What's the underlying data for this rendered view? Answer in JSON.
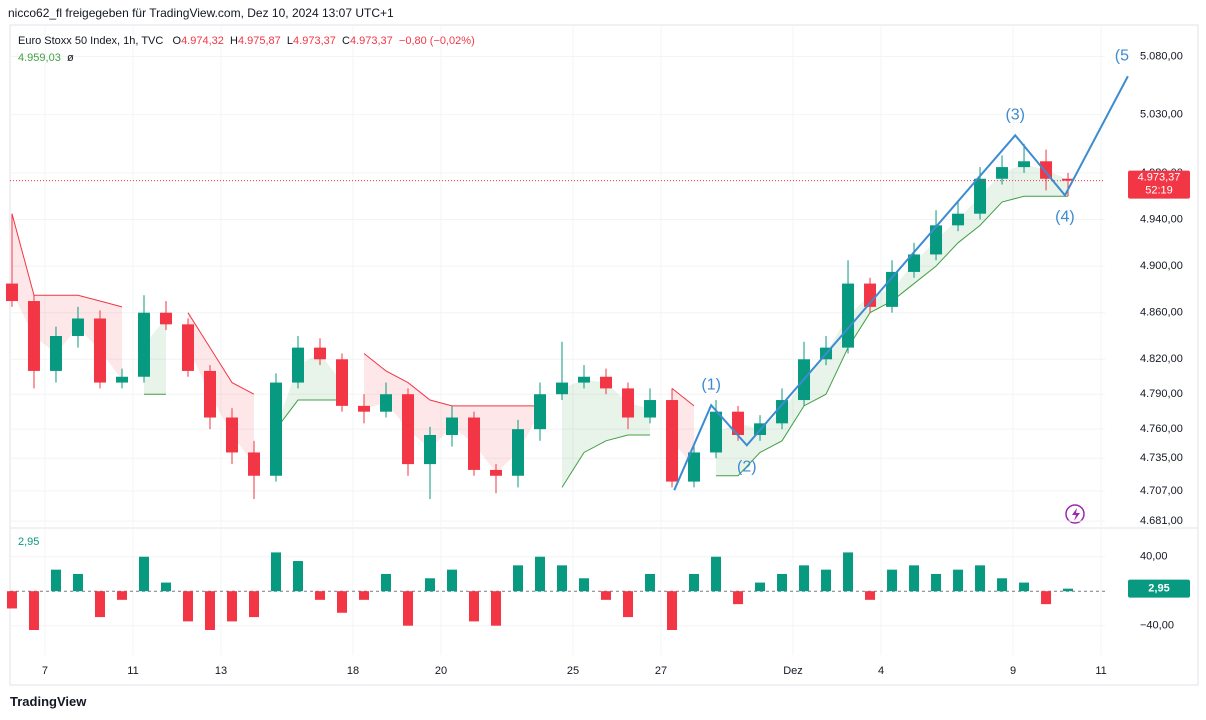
{
  "header": "nicco62_fl freigegeben für TradingView.com, Dez 10, 2024 13:07 UTC+1",
  "legend": {
    "symbol": "Euro Stoxx 50 Index, 1h, TVC",
    "o_label": "O",
    "o": "4.974,32",
    "h_label": "H",
    "h": "4.975,87",
    "l_label": "L",
    "l": "4.973,37",
    "c_label": "C",
    "c": "4.973,37",
    "change": "−0,80 (−0,02%)",
    "indicator": "4.959,03",
    "indicator_sign": "ø"
  },
  "price_tag": {
    "price": "4.973,37",
    "countdown": "52:19"
  },
  "footer": "TradingView",
  "chart_data": [
    {
      "type": "candlestick",
      "up_color": "#089981",
      "down_color": "#f23645",
      "x": [
        -0.75,
        -0.25,
        0.25,
        0.75,
        1.25,
        1.75,
        2.25,
        2.75,
        3.25,
        3.75,
        4.25,
        4.75,
        5.25,
        5.75,
        6.25,
        6.75,
        7.25,
        7.75,
        8.25,
        8.75,
        9.25,
        9.75,
        10.25,
        10.75,
        11.25,
        11.75,
        12.25,
        12.75,
        13.25,
        13.75,
        14.25,
        14.75,
        15.25,
        15.75,
        16.25,
        16.75,
        17.25,
        17.75,
        18.25,
        18.75,
        19.25,
        19.75,
        20.25,
        20.75,
        21.25,
        21.75,
        22.25,
        22.75,
        23.25
      ],
      "open": [
        4885,
        4870,
        4810,
        4840,
        4855,
        4800,
        4805,
        4860,
        4850,
        4810,
        4770,
        4740,
        4720,
        4800,
        4830,
        4820,
        4780,
        4775,
        4790,
        4730,
        4755,
        4770,
        4725,
        4720,
        4760,
        4790,
        4800,
        4805,
        4795,
        4770,
        4785,
        4715,
        4740,
        4775,
        4755,
        4765,
        4785,
        4820,
        4830,
        4885,
        4865,
        4895,
        4910,
        4935,
        4945,
        4975,
        4985,
        4990,
        4975
      ],
      "high": [
        4945,
        4875,
        4848,
        4865,
        4862,
        4812,
        4875,
        4870,
        4855,
        4815,
        4778,
        4750,
        4808,
        4840,
        4838,
        4825,
        4790,
        4800,
        4795,
        4762,
        4780,
        4775,
        4730,
        4768,
        4800,
        4835,
        4815,
        4812,
        4800,
        4795,
        4795,
        4745,
        4785,
        4780,
        4772,
        4795,
        4835,
        4840,
        4905,
        4890,
        4905,
        4920,
        4948,
        4955,
        4985,
        4995,
        5005,
        5000,
        4980
      ],
      "low": [
        4865,
        4795,
        4800,
        4830,
        4795,
        4795,
        4800,
        4845,
        4805,
        4760,
        4730,
        4700,
        4715,
        4795,
        4815,
        4775,
        4765,
        4770,
        4720,
        4700,
        4745,
        4720,
        4705,
        4710,
        4750,
        4785,
        4795,
        4790,
        4760,
        4765,
        4710,
        4710,
        4735,
        4750,
        4750,
        4760,
        4780,
        4815,
        4825,
        4860,
        4860,
        4890,
        4905,
        4930,
        4940,
        4970,
        4980,
        4965,
        4960
      ],
      "close": [
        4870,
        4810,
        4840,
        4855,
        4800,
        4805,
        4860,
        4850,
        4810,
        4770,
        4740,
        4720,
        4800,
        4830,
        4820,
        4780,
        4775,
        4790,
        4730,
        4755,
        4770,
        4725,
        4720,
        4760,
        4790,
        4800,
        4805,
        4795,
        4770,
        4785,
        4715,
        4740,
        4775,
        4755,
        4765,
        4785,
        4820,
        4830,
        4885,
        4865,
        4895,
        4910,
        4935,
        4945,
        4975,
        4985,
        4990,
        4975,
        4973.37
      ],
      "supertrend_up": [
        null,
        null,
        null,
        null,
        null,
        null,
        4790,
        4790,
        null,
        null,
        null,
        null,
        4760,
        4785,
        4785,
        4785,
        null,
        null,
        null,
        null,
        null,
        null,
        null,
        null,
        null,
        4710,
        4740,
        4750,
        4755,
        4755,
        null,
        null,
        4720,
        4720,
        4740,
        4750,
        4780,
        4790,
        4830,
        4860,
        4870,
        4885,
        4900,
        4920,
        4935,
        4955,
        4960,
        4960,
        4960
      ],
      "supertrend_down": [
        4945,
        4875,
        4875,
        4875,
        4870,
        4865,
        null,
        null,
        4860,
        4830,
        4800,
        4790,
        null,
        null,
        null,
        null,
        4825,
        4810,
        4800,
        4785,
        4780,
        4780,
        4780,
        4780,
        4780,
        null,
        null,
        null,
        null,
        null,
        4795,
        4780,
        null,
        null,
        null,
        null,
        null,
        null,
        null,
        null,
        null,
        null,
        null,
        null,
        null,
        null,
        null,
        null,
        null
      ],
      "waves": {
        "color": "#3d8bd0",
        "labels": [
          null,
          "(1)",
          "(2)",
          "(3)",
          "(4)",
          "(5"
        ],
        "x": [
          14.3,
          15.14,
          15.95,
          22.05,
          23.18,
          24.61
        ],
        "y": [
          4707.6,
          4780.6,
          4746.2,
          5012.3,
          4960.8,
          5063
        ]
      },
      "current_price": 4973.37,
      "xlim": [
        -0.795,
        24.09
      ],
      "ylim": [
        4676,
        5107
      ],
      "xticks": [
        {
          "value": 0,
          "label": "7"
        },
        {
          "value": 2,
          "label": "11"
        },
        {
          "value": 4,
          "label": "13"
        },
        {
          "value": 7,
          "label": "18"
        },
        {
          "value": 9,
          "label": "20"
        },
        {
          "value": 12,
          "label": "25"
        },
        {
          "value": 14,
          "label": "27"
        },
        {
          "value": 17,
          "label": "Dez"
        },
        {
          "value": 19,
          "label": "4"
        },
        {
          "value": 22,
          "label": "9"
        },
        {
          "value": 24,
          "label": "11"
        }
      ],
      "yticks": [
        {
          "value": 4681,
          "label": "4.681,00"
        },
        {
          "value": 4707,
          "label": "4.707,00"
        },
        {
          "value": 4735,
          "label": "4.735,00"
        },
        {
          "value": 4760,
          "label": "4.760,00"
        },
        {
          "value": 4790,
          "label": "4.790,00"
        },
        {
          "value": 4820,
          "label": "4.820,00"
        },
        {
          "value": 4860,
          "label": "4.860,00"
        },
        {
          "value": 4900,
          "label": "4.900,00"
        },
        {
          "value": 4940,
          "label": "4.940,00"
        },
        {
          "value": 4980,
          "label": "4.980,00"
        },
        {
          "value": 5030,
          "label": "5.030,00"
        },
        {
          "value": 5080,
          "label": "5.080,00"
        }
      ]
    },
    {
      "type": "histogram",
      "pos_color": "#089981",
      "neg_color": "#f23645",
      "values": [
        -20,
        -45,
        25,
        20,
        -30,
        -10,
        40,
        10,
        -35,
        -45,
        -35,
        -30,
        45,
        35,
        -10,
        -25,
        -10,
        20,
        -40,
        15,
        25,
        -35,
        -40,
        30,
        40,
        30,
        15,
        -10,
        -30,
        20,
        -45,
        20,
        40,
        -15,
        10,
        20,
        30,
        25,
        45,
        -10,
        25,
        30,
        20,
        25,
        30,
        15,
        10,
        -15,
        2.95
      ],
      "value_labels": [
        null,
        null,
        null,
        null,
        null,
        null,
        null,
        null,
        null,
        null,
        null,
        null,
        null,
        null,
        null,
        null,
        null,
        null,
        null,
        null,
        null,
        null,
        null,
        null,
        null,
        null,
        null,
        null,
        null,
        null,
        null,
        null,
        null,
        null,
        null,
        null,
        null,
        null,
        null,
        null,
        null,
        null,
        null,
        null,
        null,
        null,
        null,
        null,
        "2,95"
      ],
      "ylim": [
        -74,
        71
      ],
      "yticks": [
        {
          "value": 40,
          "label": "40,00"
        },
        {
          "value": -40,
          "label": "−40,00"
        }
      ]
    }
  ]
}
